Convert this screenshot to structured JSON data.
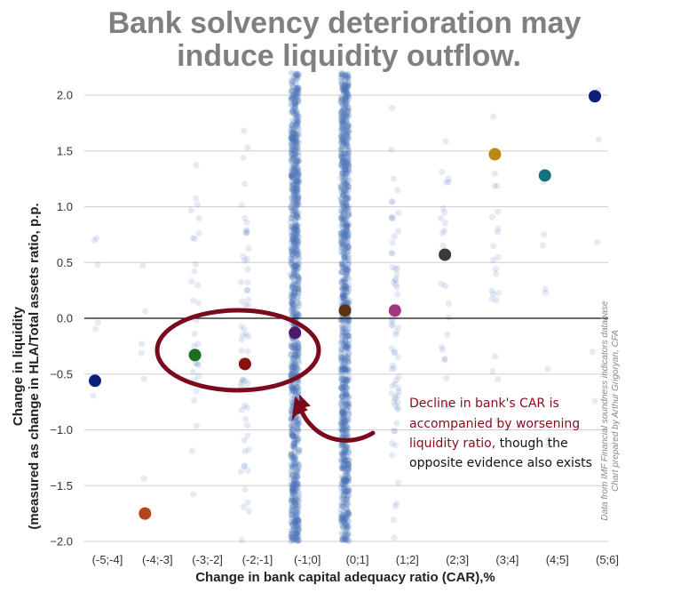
{
  "chart_data": {
    "type": "scatter",
    "title_line1": "Bank solvency deterioration may",
    "title_line2": "induce liquidity outflow.",
    "xlabel": "Change in bank capital adequacy ratio (CAR),%",
    "ylabel_line1": "Change in liquidity",
    "ylabel_line2": "(measured as change in HLA/Total assets ratio, p.p.",
    "categories": [
      "(-5;-4]",
      "(-4;-3]",
      "(-3;-2]",
      "(-2;-1]",
      "(-1;0]",
      "(0;1]",
      "(1;2]",
      "(2;3]",
      "(3;4]",
      "(4;5]",
      "(5;6]"
    ],
    "ylim": [
      -2.0,
      2.2
    ],
    "yticks": [
      -2.0,
      -1.5,
      -1.0,
      -0.5,
      0.0,
      0.5,
      1.0,
      1.5,
      2.0
    ],
    "ytick_labels": [
      "−2.0",
      "−1.5",
      "−1.0",
      "−0.5",
      "0.0",
      "0.5",
      "1.0",
      "1.5",
      "2.0"
    ],
    "grid": true,
    "group_means": [
      {
        "category": "(-5;-4]",
        "value": -0.56,
        "color": "#0d1f7a"
      },
      {
        "category": "(-4;-3]",
        "value": -1.75,
        "color": "#b5461a"
      },
      {
        "category": "(-3;-2]",
        "value": -0.33,
        "color": "#1f6b1f"
      },
      {
        "category": "(-2;-1]",
        "value": -0.41,
        "color": "#8b0f0f"
      },
      {
        "category": "(-1;0]",
        "value": -0.13,
        "color": "#4b1b6b"
      },
      {
        "category": "(0;1]",
        "value": 0.07,
        "color": "#5a3310"
      },
      {
        "category": "(1;2]",
        "value": 0.07,
        "color": "#a0367f"
      },
      {
        "category": "(2;3]",
        "value": 0.57,
        "color": "#3a3a3a"
      },
      {
        "category": "(3;4]",
        "value": 1.47,
        "color": "#b88a12"
      },
      {
        "category": "(4;5]",
        "value": 1.28,
        "color": "#13727e"
      },
      {
        "category": "(5;6]",
        "value": 1.99,
        "color": "#0d1f7a"
      }
    ],
    "point_density": [
      6,
      6,
      34,
      60,
      900,
      900,
      70,
      28,
      22,
      8,
      5
    ],
    "jitter_color": "#4a72b8",
    "annotation": {
      "red_line1": "Decline in bank's CAR is",
      "red_line2": "accompanied by worsening",
      "red_line3": "liquidity ratio,",
      "black_line3": " though the",
      "black_line4": "opposite evidence also exists",
      "highlight_color": "#7a0a1c"
    },
    "source_line1": "Data from IMF Financial soundness indicators database",
    "source_line2": "Chart prepared by Arthur Grigoryan, CFA"
  }
}
